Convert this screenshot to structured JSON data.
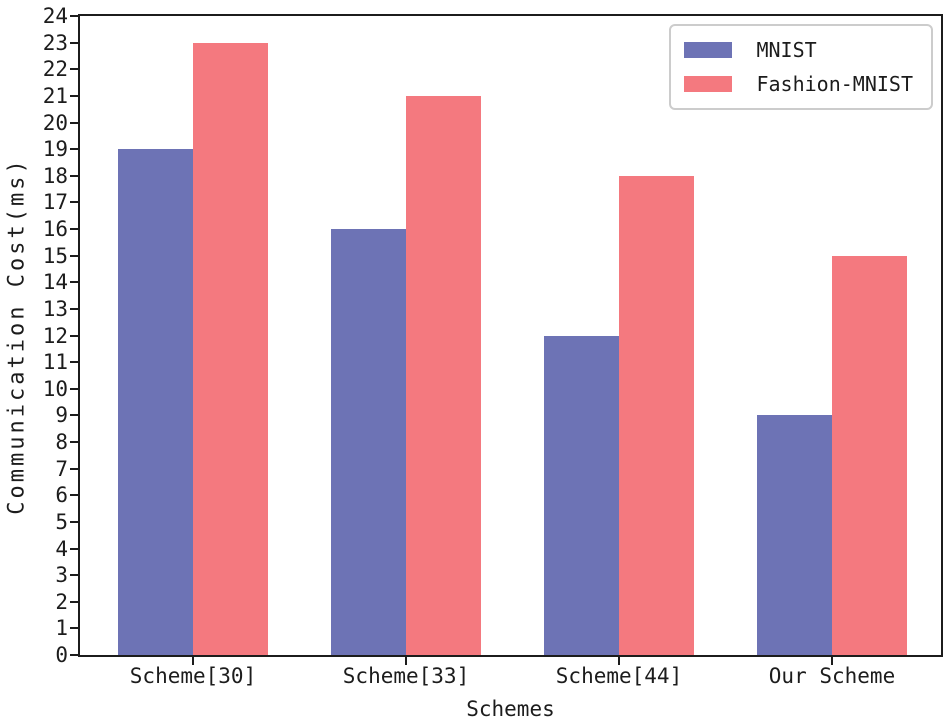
{
  "chart_data": {
    "type": "bar",
    "categories": [
      "Scheme[30]",
      "Scheme[33]",
      "Scheme[44]",
      "Our Scheme"
    ],
    "series": [
      {
        "name": "MNIST",
        "color": "#6d73b5",
        "values": [
          19,
          16,
          12,
          9
        ]
      },
      {
        "name": "Fashion-MNIST",
        "color": "#f4797f",
        "values": [
          23,
          21,
          18,
          15
        ]
      }
    ],
    "title": "",
    "xlabel": "Schemes",
    "ylabel": "Communication Cost(ms)",
    "ylim": [
      0,
      24
    ],
    "ytick_step": 1,
    "grid": false,
    "legend_position": "upper right",
    "frame": "full-box",
    "axis_color": "#1c1c1c",
    "legend_border_color": "#cccccc"
  }
}
